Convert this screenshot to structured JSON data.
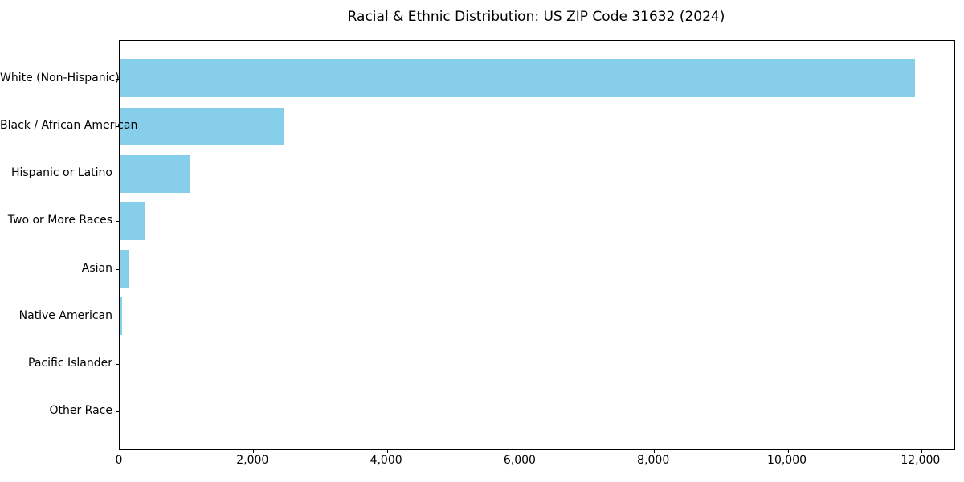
{
  "chart_data": {
    "type": "bar",
    "orientation": "horizontal",
    "title": "Racial & Ethnic Distribution: US ZIP Code 31632 (2024)",
    "categories": [
      "White (Non-Hispanic)",
      "Black / African American",
      "Hispanic or Latino",
      "Two or More Races",
      "Asian",
      "Native American",
      "Pacific Islander",
      "Other Race"
    ],
    "values": [
      11900,
      2470,
      1050,
      375,
      140,
      40,
      0,
      0
    ],
    "xlabel": "",
    "ylabel": "",
    "xlim": [
      0,
      12495
    ],
    "x_tick_values": [
      0,
      2000,
      4000,
      6000,
      8000,
      10000,
      12000
    ],
    "x_tick_labels": [
      "0",
      "2,000",
      "4,000",
      "6,000",
      "8,000",
      "10,000",
      "12,000"
    ],
    "bar_color": "#87CEEB",
    "background_color": "#ffffff",
    "text_color": "#000000",
    "grid": false,
    "legend": "none"
  }
}
